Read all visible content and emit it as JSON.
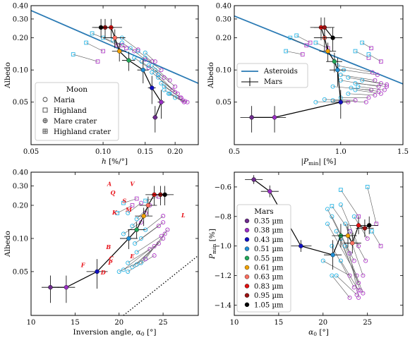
{
  "colors": {
    "maria": "#29b5e5",
    "highland": "#b03fc8",
    "asteroids": "#2a7ab4",
    "mars": "#000000",
    "filter": "#e8141b",
    "line": "#555555",
    "frame": "#000000"
  },
  "chart_data": [
    {
      "id": "h_vs_albedo",
      "type": "scatter",
      "xlabel_main": "h",
      "xlabel_rest": " [%/°]",
      "ylabel": "Albedo",
      "xscale": "log",
      "yscale": "log",
      "xlim": [
        0.05,
        0.25
      ],
      "ylim": [
        0.02,
        0.4
      ],
      "xticks": [
        0.05,
        0.1,
        0.15,
        0.2
      ],
      "xtick_labels": [
        "0.05",
        "0.10",
        "0.15",
        "0.20"
      ],
      "yticks": [
        0.05,
        0.1,
        0.2,
        0.3,
        0.4
      ],
      "ytick_labels": [
        "0.05",
        "0.10",
        "0.20",
        "0.30",
        "0.40"
      ],
      "legend": {
        "title": "Moon",
        "position": "lower-left",
        "entries": [
          "Maria",
          "Highland",
          "Mare crater",
          "Highland crater"
        ]
      },
      "asteroid_line": {
        "x": [
          0.05,
          0.25
        ],
        "y": [
          0.36,
          0.075
        ]
      },
      "mars_track": {
        "x": [
          0.165,
          0.175,
          0.16,
          0.147,
          0.128,
          0.117,
          0.112,
          0.108,
          0.102,
          0.098
        ],
        "y": [
          0.036,
          0.05,
          0.068,
          0.1,
          0.123,
          0.15,
          0.2,
          0.25,
          0.25,
          0.25
        ],
        "xerr": [
          0.004,
          0.006,
          0.006,
          0.008,
          0.008,
          0.008,
          0.012,
          0.012,
          0.01,
          0.008
        ],
        "yerr": [
          0.01,
          0.015,
          0.02,
          0.025,
          0.025,
          0.03,
          0.04,
          0.05,
          0.05,
          0.05
        ]
      },
      "moon_pairs": [
        [
          0.12,
          0.18,
          0.135,
          0.15
        ],
        [
          0.14,
          0.15,
          0.16,
          0.12
        ],
        [
          0.15,
          0.13,
          0.175,
          0.1
        ],
        [
          0.16,
          0.11,
          0.19,
          0.08
        ],
        [
          0.165,
          0.1,
          0.2,
          0.07
        ],
        [
          0.17,
          0.085,
          0.205,
          0.06
        ],
        [
          0.175,
          0.075,
          0.21,
          0.055
        ],
        [
          0.18,
          0.065,
          0.215,
          0.052
        ],
        [
          0.19,
          0.06,
          0.22,
          0.051
        ],
        [
          0.2,
          0.055,
          0.225,
          0.05
        ],
        [
          0.135,
          0.13,
          0.155,
          0.105
        ],
        [
          0.145,
          0.12,
          0.17,
          0.09
        ],
        [
          0.155,
          0.11,
          0.18,
          0.085
        ],
        [
          0.16,
          0.095,
          0.195,
          0.065
        ],
        [
          0.17,
          0.09,
          0.2,
          0.062
        ],
        [
          0.18,
          0.07,
          0.212,
          0.055
        ],
        [
          0.13,
          0.16,
          0.15,
          0.125
        ],
        [
          0.12,
          0.2,
          0.14,
          0.155
        ],
        [
          0.15,
          0.145,
          0.165,
          0.12
        ],
        [
          0.188,
          0.06,
          0.218,
          0.05
        ]
      ],
      "craters": [
        [
          0.09,
          0.22,
          0.12,
          0.17
        ],
        [
          0.085,
          0.18,
          0.1,
          0.15
        ],
        [
          0.1,
          0.2,
          0.115,
          0.17
        ],
        [
          0.075,
          0.14,
          0.095,
          0.12
        ],
        [
          0.11,
          0.19,
          0.125,
          0.16
        ]
      ]
    },
    {
      "id": "pmin_vs_albedo",
      "type": "scatter",
      "xlabel_main": "|P",
      "xlabel_sub": "min",
      "xlabel_rest": "| [%]",
      "ylabel": "Albedo",
      "xscale": "log",
      "yscale": "log",
      "xlim": [
        0.5,
        1.5
      ],
      "ylim": [
        0.02,
        0.4
      ],
      "xticks": [
        0.5,
        1.0,
        1.5
      ],
      "xtick_labels": [
        "0.5",
        "1.0",
        "1.5"
      ],
      "yticks": [
        0.05,
        0.1,
        0.2,
        0.3,
        0.4
      ],
      "ytick_labels": [
        "0.05",
        "0.10",
        "0.20",
        "0.30",
        "0.40"
      ],
      "legend": {
        "position": "center",
        "entries": [
          "Asteroids",
          "Mars"
        ]
      },
      "asteroid_line": {
        "x": [
          0.5,
          1.5
        ],
        "y": [
          0.32,
          0.074
        ]
      },
      "mars_track": {
        "x": [
          0.56,
          0.65,
          1.0,
          0.98,
          0.96,
          0.92,
          0.9,
          0.88,
          0.9,
          0.95
        ],
        "y": [
          0.036,
          0.036,
          0.05,
          0.1,
          0.12,
          0.15,
          0.2,
          0.25,
          0.25,
          0.2
        ],
        "xerr": [
          0.04,
          0.05,
          0.06,
          0.05,
          0.05,
          0.05,
          0.06,
          0.06,
          0.06,
          0.06
        ],
        "yerr": [
          0.01,
          0.01,
          0.015,
          0.03,
          0.025,
          0.03,
          0.05,
          0.06,
          0.06,
          0.05
        ]
      },
      "moon_pairs": [
        [
          1.0,
          0.09,
          1.25,
          0.08
        ],
        [
          1.05,
          0.085,
          1.3,
          0.075
        ],
        [
          1.0,
          0.08,
          1.28,
          0.07
        ],
        [
          0.95,
          0.07,
          1.22,
          0.065
        ],
        [
          1.1,
          0.065,
          1.3,
          0.06
        ],
        [
          1.05,
          0.06,
          1.25,
          0.058
        ],
        [
          1.0,
          0.055,
          1.2,
          0.055
        ],
        [
          0.95,
          0.052,
          1.18,
          0.05
        ],
        [
          1.1,
          0.075,
          1.35,
          0.07
        ],
        [
          1.15,
          0.08,
          1.35,
          0.073
        ],
        [
          1.02,
          0.1,
          1.27,
          0.09
        ],
        [
          0.98,
          0.11,
          1.23,
          0.095
        ],
        [
          0.9,
          0.053,
          1.1,
          0.052
        ],
        [
          0.85,
          0.05,
          1.05,
          0.05
        ],
        [
          1.12,
          0.07,
          1.33,
          0.065
        ],
        [
          1.07,
          0.068,
          1.28,
          0.063
        ]
      ],
      "craters": [
        [
          0.72,
          0.2,
          0.8,
          0.17
        ],
        [
          0.75,
          0.21,
          0.82,
          0.18
        ],
        [
          0.7,
          0.15,
          0.78,
          0.14
        ],
        [
          0.85,
          0.18,
          0.92,
          0.16
        ],
        [
          1.1,
          0.15,
          1.2,
          0.13
        ],
        [
          1.15,
          0.18,
          1.22,
          0.16
        ],
        [
          1.2,
          0.14,
          1.3,
          0.12
        ]
      ]
    },
    {
      "id": "alpha_vs_albedo",
      "type": "scatter",
      "xlabel_main": "Inversion angle, α",
      "xlabel_sub": "0",
      "xlabel_rest": " [°]",
      "ylabel": "Albedo",
      "xscale": "linear",
      "yscale": "log",
      "xlim": [
        10,
        29
      ],
      "ylim": [
        0.02,
        0.4
      ],
      "xticks": [
        10,
        15,
        20,
        25
      ],
      "xtick_labels": [
        "10",
        "15",
        "20",
        "25"
      ],
      "yticks": [
        0.05,
        0.1,
        0.2,
        0.3,
        0.4
      ],
      "ytick_labels": [
        "0.05",
        "0.10",
        "0.20",
        "0.30",
        "0.40"
      ],
      "filter_labels": [
        {
          "t": "A",
          "x": 18.9,
          "y": 0.3
        },
        {
          "t": "V",
          "x": 21.5,
          "y": 0.3
        },
        {
          "t": "Q",
          "x": 19.3,
          "y": 0.25
        },
        {
          "t": "S",
          "x": 20.6,
          "y": 0.21
        },
        {
          "t": "M",
          "x": 21.1,
          "y": 0.175
        },
        {
          "t": "K",
          "x": 19.5,
          "y": 0.165
        },
        {
          "t": "L",
          "x": 27.3,
          "y": 0.155
        },
        {
          "t": "B",
          "x": 18.8,
          "y": 0.08
        },
        {
          "t": "C",
          "x": 19.1,
          "y": 0.063
        },
        {
          "t": "P",
          "x": 19.0,
          "y": 0.058
        },
        {
          "t": "F",
          "x": 15.9,
          "y": 0.055
        },
        {
          "t": "D",
          "x": 18.2,
          "y": 0.047
        },
        {
          "t": "E",
          "x": 21.5,
          "y": 0.066
        }
      ],
      "dotted_line": {
        "x": [
          20.5,
          29
        ],
        "y": [
          0.02,
          0.07
        ]
      },
      "mars_track": {
        "x": [
          12.2,
          14.0,
          17.5,
          21.1,
          22.0,
          22.8,
          23.3,
          24.0,
          24.7,
          25.2
        ],
        "y": [
          0.036,
          0.036,
          0.05,
          0.1,
          0.12,
          0.16,
          0.2,
          0.25,
          0.25,
          0.25
        ],
        "xerr": [
          1.0,
          1.0,
          1.2,
          1.0,
          1.0,
          1.0,
          1.0,
          1.0,
          1.0,
          1.0
        ],
        "yerr": [
          0.01,
          0.01,
          0.015,
          0.02,
          0.02,
          0.03,
          0.04,
          0.05,
          0.05,
          0.05
        ]
      },
      "moon_pairs": [
        [
          21.0,
          0.05,
          24.0,
          0.07
        ],
        [
          20.5,
          0.052,
          23.5,
          0.08
        ],
        [
          21.5,
          0.055,
          24.5,
          0.09
        ],
        [
          22.0,
          0.058,
          25.0,
          0.1
        ],
        [
          22.5,
          0.06,
          25.2,
          0.11
        ],
        [
          23.0,
          0.065,
          25.5,
          0.12
        ],
        [
          21.0,
          0.06,
          24.0,
          0.085
        ],
        [
          20.0,
          0.05,
          23.0,
          0.065
        ],
        [
          22.0,
          0.075,
          24.8,
          0.105
        ],
        [
          21.8,
          0.09,
          24.5,
          0.13
        ],
        [
          22.5,
          0.1,
          25.0,
          0.14
        ],
        [
          23.0,
          0.12,
          25.0,
          0.16
        ],
        [
          21.5,
          0.13,
          23.0,
          0.17
        ],
        [
          22.0,
          0.15,
          23.5,
          0.2
        ],
        [
          21.0,
          0.17,
          22.5,
          0.21
        ],
        [
          20.5,
          0.11,
          22.5,
          0.14
        ]
      ],
      "craters": [
        [
          19.8,
          0.17,
          21.5,
          0.2
        ],
        [
          20.5,
          0.21,
          22.0,
          0.23
        ],
        [
          23.0,
          0.22,
          24.5,
          0.24
        ]
      ]
    },
    {
      "id": "alpha_vs_pmin",
      "type": "scatter",
      "xlabel_main": "α",
      "xlabel_sub": "0",
      "xlabel_rest": " [°]",
      "ylabel_main": "P",
      "ylabel_sub": "min",
      "ylabel_rest": " [%]",
      "xscale": "linear",
      "yscale": "linear",
      "xlim": [
        10,
        29
      ],
      "ylim": [
        -1.47,
        -0.5
      ],
      "xticks": [
        10,
        15,
        20,
        25
      ],
      "xtick_labels": [
        "10",
        "15",
        "20",
        "25"
      ],
      "yticks": [
        -0.6,
        -0.8,
        -1.0,
        -1.2,
        -1.4
      ],
      "ytick_labels": [
        "−0.6",
        "−0.8",
        "−1.0",
        "−1.2",
        "−1.4"
      ],
      "legend": {
        "title": "Mars",
        "position": "left",
        "entries": [
          "0.35 µm",
          "0.38 µm",
          "0.43 µm",
          "0.51 µm",
          "0.55 µm",
          "0.61 µm",
          "0.63 µm",
          "0.83 µm",
          "0.95 µm",
          "1.05 µm"
        ],
        "colors": [
          "#6d2b8c",
          "#9a2fc4",
          "#1010c0",
          "#1f8fd6",
          "#22a85a",
          "#f2a200",
          "#ff6f60",
          "#e01010",
          "#9a1111",
          "#000000"
        ]
      },
      "mars_track": {
        "x": [
          12.2,
          14.0,
          17.5,
          21.1,
          22.0,
          22.8,
          23.3,
          24.0,
          24.7,
          25.2
        ],
        "y": [
          -0.55,
          -0.63,
          -1.0,
          -1.06,
          -0.93,
          -0.93,
          -0.98,
          -0.86,
          -0.88,
          -0.86
        ],
        "xerr": [
          1.0,
          1.0,
          1.2,
          1.0,
          1.0,
          1.0,
          1.0,
          1.0,
          1.0,
          1.0
        ],
        "yerr": [
          0.03,
          0.04,
          0.04,
          0.1,
          0.08,
          0.08,
          0.07,
          0.06,
          0.06,
          0.06
        ]
      },
      "moon_pairs": [
        [
          21.0,
          -0.8,
          23.5,
          -1.1
        ],
        [
          20.5,
          -0.85,
          23.8,
          -1.2
        ],
        [
          21.5,
          -0.9,
          24.0,
          -1.25
        ],
        [
          22.0,
          -0.95,
          24.2,
          -1.3
        ],
        [
          22.5,
          -1.0,
          24.5,
          -1.32
        ],
        [
          23.0,
          -1.05,
          24.0,
          -1.35
        ],
        [
          21.0,
          -1.0,
          23.5,
          -1.28
        ],
        [
          20.0,
          -1.1,
          23.0,
          -1.2
        ],
        [
          22.0,
          -1.1,
          24.0,
          -1.3
        ],
        [
          21.5,
          -1.2,
          23.8,
          -1.33
        ],
        [
          22.5,
          -0.85,
          24.5,
          -1.2
        ],
        [
          23.0,
          -0.9,
          24.8,
          -1.1
        ],
        [
          21.0,
          -1.2,
          23.0,
          -1.35
        ],
        [
          20.5,
          -0.75,
          23.0,
          -1.05
        ],
        [
          22.0,
          -0.72,
          24.0,
          -1.0
        ],
        [
          23.5,
          -0.8,
          25.0,
          -0.95
        ]
      ],
      "craters": [
        [
          22.0,
          -0.62,
          24.0,
          -0.8
        ],
        [
          25.0,
          -0.6,
          26.0,
          -0.85
        ],
        [
          21.0,
          -0.73,
          23.0,
          -0.9
        ],
        [
          25.5,
          -0.9,
          26.5,
          -1.0
        ]
      ]
    }
  ]
}
